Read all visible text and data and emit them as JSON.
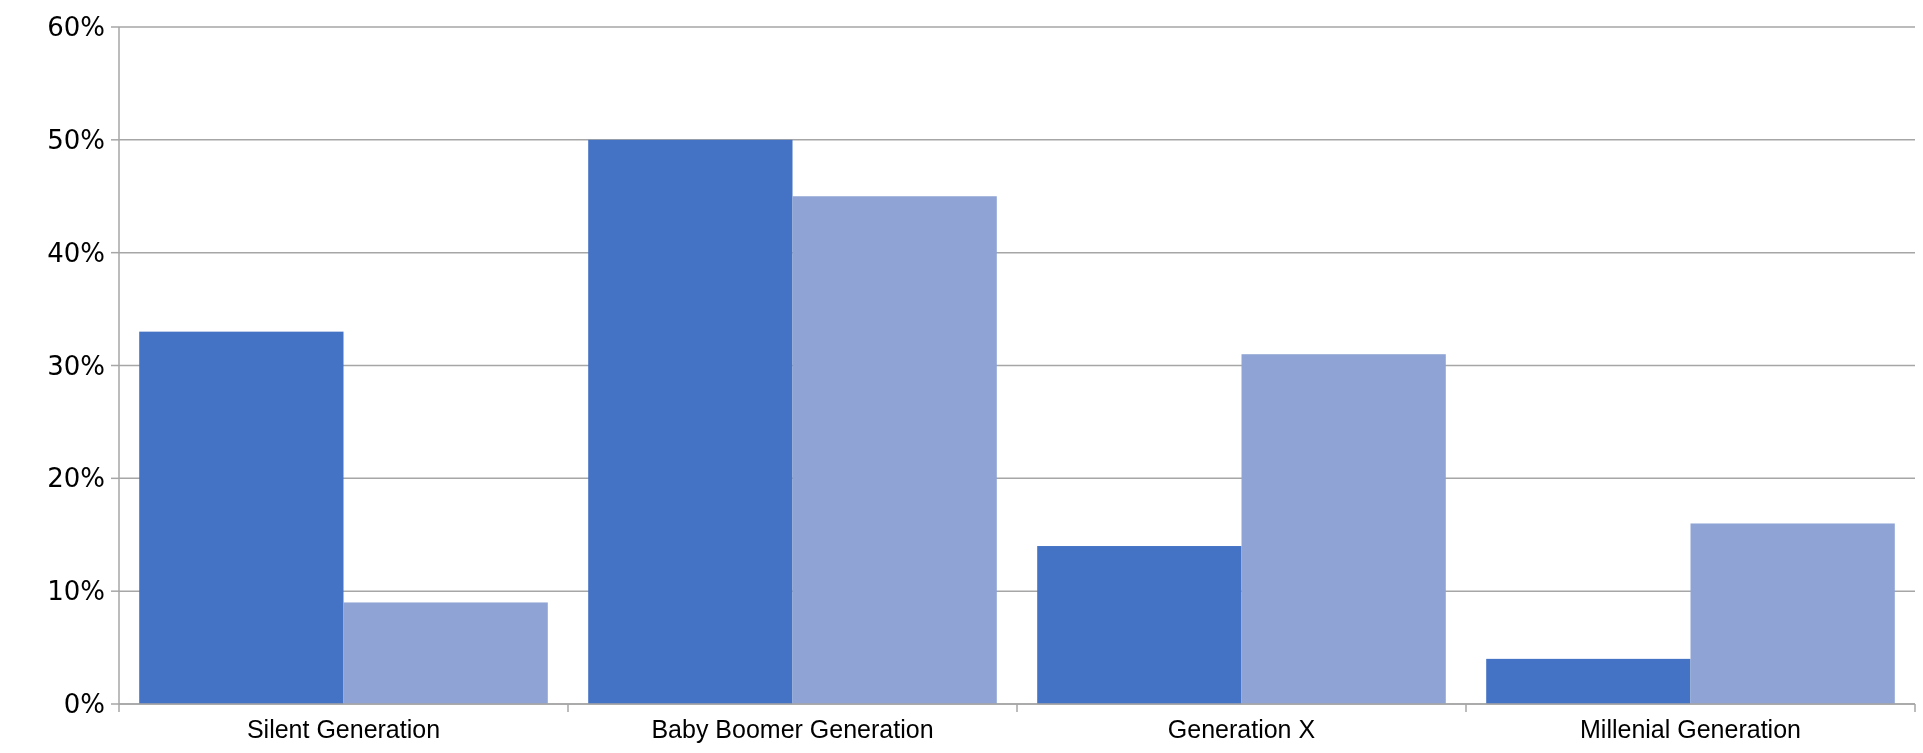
{
  "chart_data": {
    "type": "bar",
    "categories": [
      "Silent Generation",
      "Baby Boomer Generation",
      "Generation X",
      "Millenial Generation"
    ],
    "series": [
      {
        "color": "#4472c4",
        "values": [
          33,
          50,
          14,
          4
        ]
      },
      {
        "color": "#8fa4d4",
        "values": [
          9,
          45,
          31,
          16
        ]
      }
    ],
    "ylim": [
      0,
      60
    ],
    "yticks": [
      {
        "value": 0,
        "label": "0%"
      },
      {
        "value": 10,
        "label": "10%"
      },
      {
        "value": 20,
        "label": "20%"
      },
      {
        "value": 30,
        "label": "30%"
      },
      {
        "value": 40,
        "label": "40%"
      },
      {
        "value": 50,
        "label": "50%"
      },
      {
        "value": 60,
        "label": "60%"
      }
    ],
    "grid": "y"
  }
}
